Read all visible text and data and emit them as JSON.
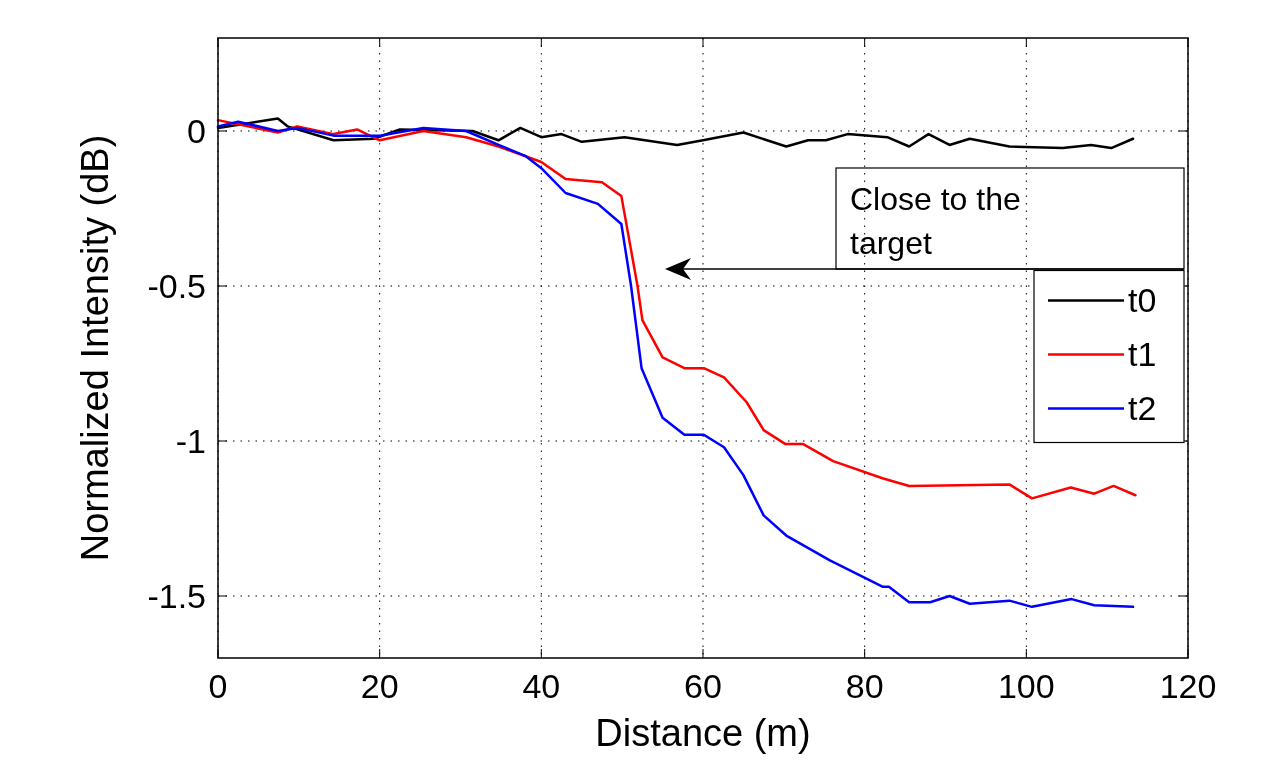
{
  "chart_data": {
    "type": "line",
    "xlabel": "Distance (m)",
    "ylabel": "Normalized Intensity (dB)",
    "xlim": [
      0,
      120
    ],
    "ylim": [
      -1.7,
      0.3
    ],
    "xticks": [
      0,
      20,
      40,
      60,
      80,
      100,
      120
    ],
    "yticks": [
      -1.5,
      -1,
      -0.5,
      0
    ],
    "grid": true,
    "legend": "right",
    "line_style": "solid",
    "annotations": [
      "Close to the target"
    ],
    "series": [
      {
        "name": "t0",
        "color": "#000000",
        "x": [
          0,
          7.4,
          8.6,
          14.3,
          19.3,
          22.5,
          31.5,
          34.7,
          37.4,
          40,
          42.5,
          45,
          50.3,
          56.8,
          60,
          65,
          70.3,
          73,
          75.2,
          77.9,
          82.8,
          85.5,
          87.9,
          90.5,
          93,
          97.9,
          104.5,
          108,
          110.5,
          113.2
        ],
        "values": [
          0.01,
          0.04,
          0.015,
          -0.03,
          -0.025,
          0.005,
          0,
          -0.03,
          0.01,
          -0.02,
          -0.01,
          -0.035,
          -0.02,
          -0.045,
          -0.03,
          -0.005,
          -0.05,
          -0.03,
          -0.03,
          -0.01,
          -0.02,
          -0.05,
          -0.01,
          -0.045,
          -0.025,
          -0.05,
          -0.055,
          -0.045,
          -0.055,
          -0.025
        ]
      },
      {
        "name": "t1",
        "color": "#ff0000",
        "x": [
          0,
          7.4,
          9.8,
          14.3,
          17.2,
          20,
          25.4,
          30.7,
          34.7,
          40,
          43,
          47.5,
          49.9,
          51.9,
          52.5,
          55,
          57.7,
          60.1,
          62.6,
          65.4,
          67.5,
          70.2,
          72.4,
          76.1,
          82.2,
          85.5,
          97.9,
          100.7,
          105.5,
          108.4,
          110.8,
          113.5
        ],
        "values": [
          0.035,
          -0.005,
          0.015,
          -0.01,
          0.005,
          -0.03,
          0,
          -0.02,
          -0.05,
          -0.1,
          -0.155,
          -0.165,
          -0.21,
          -0.5,
          -0.61,
          -0.73,
          -0.765,
          -0.765,
          -0.795,
          -0.875,
          -0.965,
          -1.01,
          -1.01,
          -1.065,
          -1.12,
          -1.145,
          -1.14,
          -1.185,
          -1.15,
          -1.17,
          -1.145,
          -1.175
        ]
      },
      {
        "name": "t2",
        "color": "#0000ff",
        "x": [
          0,
          2.5,
          7.4,
          9.8,
          14.3,
          20,
          25.4,
          30.7,
          34.7,
          38,
          40,
          43,
          47,
          49.9,
          51.1,
          52.4,
          55,
          57.7,
          60.1,
          62.6,
          65,
          67.5,
          70.3,
          75.7,
          82.2,
          83,
          85.5,
          88.1,
          90.5,
          93,
          97.9,
          100.7,
          105.6,
          108.4,
          113.2
        ],
        "values": [
          0.015,
          0.03,
          0,
          0.01,
          -0.015,
          -0.015,
          0.01,
          0,
          -0.045,
          -0.08,
          -0.12,
          -0.2,
          -0.235,
          -0.3,
          -0.5,
          -0.765,
          -0.925,
          -0.98,
          -0.98,
          -1.02,
          -1.11,
          -1.24,
          -1.305,
          -1.385,
          -1.47,
          -1.47,
          -1.52,
          -1.52,
          -1.5,
          -1.525,
          -1.515,
          -1.535,
          -1.51,
          -1.53,
          -1.535
        ]
      }
    ]
  }
}
